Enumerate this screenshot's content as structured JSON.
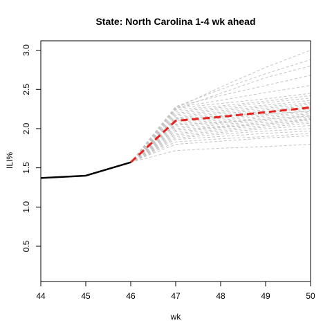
{
  "chart_data": {
    "type": "line",
    "title": "State: North Carolina 1-4 wk ahead",
    "xlabel": "wk",
    "ylabel": "ILI%",
    "xlim": [
      44,
      50
    ],
    "ylim": [
      0.05,
      3.12
    ],
    "x_ticks": [
      44,
      45,
      46,
      47,
      48,
      49,
      50
    ],
    "x_tick_labels": [
      "44",
      "45",
      "46",
      "47",
      "48",
      "49",
      "50"
    ],
    "y_ticks": [
      0.5,
      1.0,
      1.5,
      2.0,
      2.5,
      3.0
    ],
    "y_tick_labels": [
      "0.5",
      "1.0",
      "1.5",
      "2.0",
      "2.5",
      "3.0"
    ],
    "grid": false,
    "colors": {
      "observed": "#000000",
      "forecast_mean": "#e8211c",
      "ensemble": "#c4c4c4",
      "axis": "#000000"
    },
    "observed": {
      "x": [
        44,
        45,
        46
      ],
      "y": [
        1.37,
        1.4,
        1.57
      ]
    },
    "forecast_mean": {
      "x": [
        46,
        47,
        48,
        49,
        50
      ],
      "y": [
        1.57,
        2.1,
        2.15,
        2.21,
        2.27
      ]
    },
    "ensemble": [
      {
        "x": [
          46,
          47,
          48,
          49,
          50
        ],
        "y": [
          1.57,
          1.72,
          1.75,
          1.77,
          1.8
        ]
      },
      {
        "x": [
          46,
          47,
          48,
          49,
          50
        ],
        "y": [
          1.57,
          1.8,
          1.84,
          1.88,
          1.91
        ]
      },
      {
        "x": [
          46,
          47,
          48,
          49,
          50
        ],
        "y": [
          1.57,
          1.83,
          1.87,
          1.9,
          1.94
        ]
      },
      {
        "x": [
          46,
          47,
          48,
          49,
          50
        ],
        "y": [
          1.57,
          1.86,
          1.9,
          1.94,
          1.97
        ]
      },
      {
        "x": [
          46,
          47,
          48,
          49,
          50
        ],
        "y": [
          1.57,
          1.88,
          1.93,
          1.97,
          2.0
        ]
      },
      {
        "x": [
          46,
          47,
          48,
          49,
          50
        ],
        "y": [
          1.57,
          1.9,
          1.95,
          2.0,
          2.04
        ]
      },
      {
        "x": [
          46,
          47,
          48,
          49,
          50
        ],
        "y": [
          1.57,
          1.92,
          1.97,
          2.02,
          2.07
        ]
      },
      {
        "x": [
          46,
          47,
          48,
          49,
          50
        ],
        "y": [
          1.57,
          1.94,
          1.99,
          2.04,
          2.09
        ]
      },
      {
        "x": [
          46,
          47,
          48,
          49,
          50
        ],
        "y": [
          1.57,
          1.96,
          2.01,
          2.06,
          2.11
        ]
      },
      {
        "x": [
          46,
          47,
          48,
          49,
          50
        ],
        "y": [
          1.57,
          1.98,
          2.03,
          2.08,
          2.13
        ]
      },
      {
        "x": [
          46,
          47,
          48,
          49,
          50
        ],
        "y": [
          1.57,
          2.0,
          2.05,
          2.1,
          2.15
        ]
      },
      {
        "x": [
          46,
          47,
          48,
          49,
          50
        ],
        "y": [
          1.57,
          2.02,
          2.07,
          2.12,
          2.17
        ]
      },
      {
        "x": [
          46,
          47,
          48,
          49,
          50
        ],
        "y": [
          1.57,
          2.04,
          2.09,
          2.14,
          2.19
        ]
      },
      {
        "x": [
          46,
          47,
          48,
          49,
          50
        ],
        "y": [
          1.57,
          2.06,
          2.11,
          2.16,
          2.21
        ]
      },
      {
        "x": [
          46,
          47,
          48,
          49,
          50
        ],
        "y": [
          1.57,
          2.08,
          2.13,
          2.18,
          2.23
        ]
      },
      {
        "x": [
          46,
          47,
          48,
          49,
          50
        ],
        "y": [
          1.57,
          2.1,
          2.15,
          2.2,
          2.25
        ]
      },
      {
        "x": [
          46,
          47,
          48,
          49,
          50
        ],
        "y": [
          1.57,
          2.12,
          2.17,
          2.22,
          2.27
        ]
      },
      {
        "x": [
          46,
          47,
          48,
          49,
          50
        ],
        "y": [
          1.57,
          2.14,
          2.19,
          2.24,
          2.29
        ]
      },
      {
        "x": [
          46,
          47,
          48,
          49,
          50
        ],
        "y": [
          1.57,
          2.16,
          2.21,
          2.26,
          2.31
        ]
      },
      {
        "x": [
          46,
          47,
          48,
          49,
          50
        ],
        "y": [
          1.57,
          2.18,
          2.23,
          2.28,
          2.33
        ]
      },
      {
        "x": [
          46,
          47,
          48,
          49,
          50
        ],
        "y": [
          1.57,
          2.2,
          2.25,
          2.3,
          2.36
        ]
      },
      {
        "x": [
          46,
          47,
          48,
          49,
          50
        ],
        "y": [
          1.57,
          2.22,
          2.27,
          2.33,
          2.39
        ]
      },
      {
        "x": [
          46,
          47,
          48,
          49,
          50
        ],
        "y": [
          1.57,
          2.24,
          2.29,
          2.35,
          2.42
        ]
      },
      {
        "x": [
          46,
          47,
          48,
          49,
          50
        ],
        "y": [
          1.57,
          2.26,
          2.32,
          2.38,
          2.45
        ]
      },
      {
        "x": [
          46,
          47,
          48,
          49,
          50
        ],
        "y": [
          1.57,
          2.27,
          2.36,
          2.46,
          2.55
        ]
      },
      {
        "x": [
          46,
          47,
          48,
          49,
          50
        ],
        "y": [
          1.57,
          2.28,
          2.42,
          2.55,
          2.68
        ]
      },
      {
        "x": [
          46,
          47,
          48,
          49,
          50
        ],
        "y": [
          1.57,
          2.25,
          2.45,
          2.65,
          2.8
        ]
      },
      {
        "x": [
          46,
          47,
          48,
          49,
          50
        ],
        "y": [
          1.57,
          2.28,
          2.5,
          2.7,
          2.88
        ]
      },
      {
        "x": [
          46,
          47,
          48,
          49,
          50
        ],
        "y": [
          1.57,
          2.26,
          2.53,
          2.78,
          3.0
        ]
      },
      {
        "x": [
          46,
          47,
          48,
          49,
          50
        ],
        "y": [
          1.57,
          2.05,
          2.08,
          2.12,
          2.16
        ]
      },
      {
        "x": [
          46,
          47,
          48,
          49,
          50
        ],
        "y": [
          1.57,
          1.98,
          2.02,
          2.06,
          2.12
        ]
      },
      {
        "x": [
          46,
          47,
          48,
          49,
          50
        ],
        "y": [
          1.57,
          2.13,
          2.16,
          2.19,
          2.22
        ]
      }
    ]
  }
}
